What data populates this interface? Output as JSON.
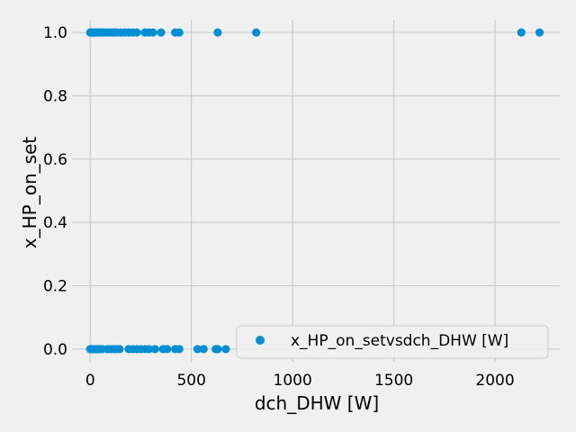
{
  "chart_data": {
    "type": "scatter",
    "title": "",
    "xlabel": "dch_DHW [W]",
    "ylabel": "x_HP_on_set",
    "xlim": [
      -90,
      2320
    ],
    "ylim": [
      -0.04,
      1.04
    ],
    "xticks": [
      0,
      500,
      1000,
      1500,
      2000
    ],
    "yticks": [
      0.0,
      0.2,
      0.4,
      0.6,
      0.8,
      1.0
    ],
    "xtick_labels": [
      "0",
      "500",
      "1000",
      "1500",
      "2000"
    ],
    "ytick_labels": [
      "0.0",
      "0.2",
      "0.4",
      "0.6",
      "0.8",
      "1.0"
    ],
    "grid": true,
    "legend_position": "lower-right",
    "series": [
      {
        "name": "x_HP_on_setvsdch_DHW [W]",
        "color": "#008fd5",
        "x": [
          0,
          2,
          4,
          6,
          8,
          10,
          13,
          16,
          20,
          24,
          28,
          33,
          38,
          43,
          48,
          55,
          62,
          70,
          85,
          100,
          115,
          130,
          150,
          170,
          190,
          210,
          230,
          270,
          290,
          310,
          350,
          420,
          440,
          630,
          820,
          2130,
          2220,
          0,
          2,
          4,
          6,
          8,
          11,
          14,
          18,
          22,
          27,
          32,
          37,
          43,
          50,
          60,
          85,
          100,
          115,
          130,
          145,
          190,
          210,
          230,
          250,
          270,
          290,
          320,
          360,
          380,
          420,
          440,
          530,
          560,
          620,
          630,
          670
        ],
        "y": [
          1,
          1,
          1,
          1,
          1,
          1,
          1,
          1,
          1,
          1,
          1,
          1,
          1,
          1,
          1,
          1,
          1,
          1,
          1,
          1,
          1,
          1,
          1,
          1,
          1,
          1,
          1,
          1,
          1,
          1,
          1,
          1,
          1,
          1,
          1,
          1,
          1,
          0,
          0,
          0,
          0,
          0,
          0,
          0,
          0,
          0,
          0,
          0,
          0,
          0,
          0,
          0,
          0,
          0,
          0,
          0,
          0,
          0,
          0,
          0,
          0,
          0,
          0,
          0,
          0,
          0,
          0,
          0,
          0,
          0,
          0,
          0,
          0
        ]
      }
    ]
  }
}
